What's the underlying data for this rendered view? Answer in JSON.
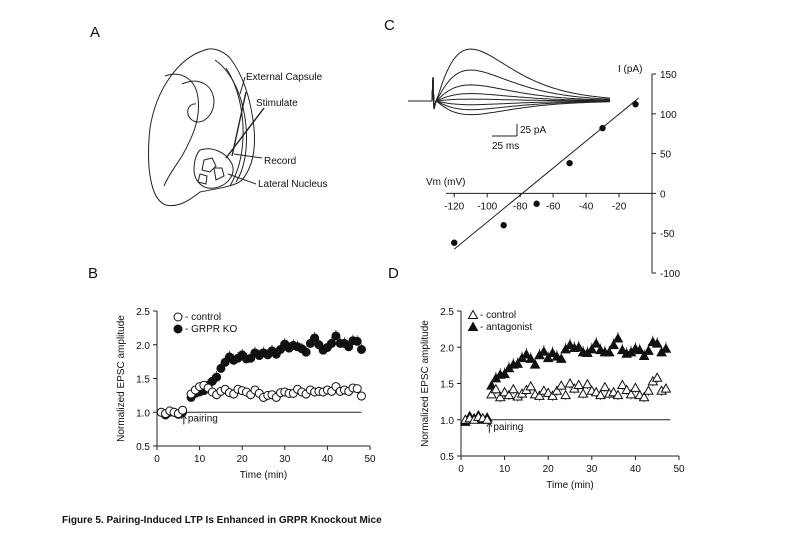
{
  "caption": "Figure 5.  Pairing-Induced LTP Is Enhanced in GRPR Knockout Mice",
  "panel_labels": [
    "A",
    "B",
    "C",
    "D"
  ],
  "panel_a": {
    "labels": [
      "External Capsule",
      "Stimulate",
      "Record",
      "Lateral Nucleus"
    ]
  },
  "panel_c": {
    "scale_current": "25 pA",
    "scale_time": "25 ms"
  },
  "chart_data": [
    {
      "panel": "C",
      "type": "scatter",
      "title": "",
      "xlabel": "Vm (mV)",
      "ylabel": "I (pA)",
      "xlim": [
        -125,
        0
      ],
      "ylim": [
        -100,
        150
      ],
      "xticks": [
        -120,
        -100,
        -80,
        -60,
        -40,
        -20
      ],
      "yticks": [
        150,
        100,
        50,
        0,
        -50,
        -100
      ],
      "x": [
        -120,
        -90,
        -70,
        -50,
        -30,
        -10
      ],
      "y": [
        -62,
        -40,
        -13,
        38,
        82,
        112
      ],
      "fit_line": {
        "x": [
          -120,
          -8
        ],
        "y": [
          -70,
          120
        ]
      }
    },
    {
      "panel": "B",
      "type": "scatter",
      "xlabel": "Time (min)",
      "ylabel": "Normalized EPSC amplitude",
      "xlim": [
        0,
        50
      ],
      "ylim": [
        0.5,
        2.5
      ],
      "xticks": [
        0,
        10,
        20,
        30,
        40,
        50
      ],
      "yticks": [
        "0.5",
        "1.0",
        "1.5",
        "2.0",
        "2.5"
      ],
      "annotation": "pairing",
      "annotation_x": 6.3,
      "baseline": 1.0,
      "series": [
        {
          "name": "control",
          "marker": "open-circle",
          "x": [
            1,
            2,
            3,
            4,
            5,
            6,
            8,
            9,
            10,
            11,
            12,
            13,
            14,
            15,
            16,
            17,
            18,
            19,
            20,
            21,
            22,
            23,
            24,
            25,
            26,
            27,
            28,
            29,
            30,
            31,
            32,
            33,
            34,
            35,
            36,
            37,
            38,
            39,
            40,
            41,
            42,
            43,
            44,
            45,
            46,
            47,
            48
          ],
          "y": [
            1.0,
            0.98,
            1.02,
            1.0,
            0.98,
            1.03,
            1.27,
            1.33,
            1.38,
            1.4,
            1.36,
            1.3,
            1.26,
            1.31,
            1.34,
            1.29,
            1.27,
            1.34,
            1.32,
            1.3,
            1.26,
            1.33,
            1.28,
            1.22,
            1.25,
            1.26,
            1.22,
            1.29,
            1.3,
            1.28,
            1.28,
            1.34,
            1.3,
            1.27,
            1.33,
            1.3,
            1.31,
            1.3,
            1.33,
            1.31,
            1.38,
            1.31,
            1.33,
            1.31,
            1.36,
            1.35,
            1.24
          ]
        },
        {
          "name": "GRPR KO",
          "marker": "filled-circle",
          "x": [
            1,
            2,
            3,
            4,
            5,
            6,
            8,
            9,
            10,
            11,
            12,
            13,
            14,
            15,
            16,
            17,
            18,
            19,
            20,
            21,
            22,
            23,
            24,
            25,
            26,
            27,
            28,
            29,
            30,
            31,
            32,
            33,
            34,
            35,
            36,
            37,
            38,
            39,
            40,
            41,
            42,
            43,
            44,
            45,
            46,
            47,
            48
          ],
          "y": [
            1.0,
            0.96,
            1.0,
            1.0,
            0.97,
            1.0,
            1.22,
            1.28,
            1.3,
            1.32,
            1.4,
            1.46,
            1.52,
            1.65,
            1.74,
            1.82,
            1.77,
            1.8,
            1.85,
            1.79,
            1.8,
            1.88,
            1.84,
            1.88,
            1.85,
            1.91,
            1.86,
            1.93,
            2.01,
            1.95,
            1.99,
            1.97,
            1.94,
            1.89,
            2.02,
            2.1,
            2.0,
            1.92,
            1.96,
            2.02,
            2.13,
            2.02,
            2.02,
            1.97,
            2.06,
            2.05,
            1.93
          ]
        }
      ]
    },
    {
      "panel": "D",
      "type": "scatter",
      "xlabel": "Time (min)",
      "ylabel": "Normalized EPSC amplitude",
      "xlim": [
        0,
        50
      ],
      "ylim": [
        0.5,
        2.5
      ],
      "xticks": [
        0,
        10,
        20,
        30,
        40,
        50
      ],
      "yticks": [
        "0.5",
        "1.0",
        "1.5",
        "2.0",
        "2.5"
      ],
      "annotation": "pairing",
      "annotation_x": 6.5,
      "baseline": 1.0,
      "series": [
        {
          "name": "control",
          "marker": "open-triangle",
          "x": [
            1,
            2,
            3,
            4,
            5,
            6,
            7,
            8,
            9,
            10,
            11,
            12,
            13,
            14,
            15,
            16,
            17,
            18,
            19,
            20,
            21,
            22,
            23,
            24,
            25,
            26,
            27,
            28,
            29,
            30,
            31,
            32,
            33,
            34,
            35,
            36,
            37,
            38,
            39,
            40,
            41,
            42,
            43,
            44,
            45,
            46,
            47
          ],
          "y": [
            1.0,
            1.02,
            1.0,
            1.04,
            1.02,
            1.0,
            1.35,
            1.42,
            1.31,
            1.38,
            1.34,
            1.42,
            1.32,
            1.36,
            1.41,
            1.46,
            1.35,
            1.33,
            1.4,
            1.37,
            1.33,
            1.4,
            1.47,
            1.34,
            1.5,
            1.43,
            1.48,
            1.36,
            1.49,
            1.4,
            1.38,
            1.34,
            1.45,
            1.36,
            1.38,
            1.34,
            1.48,
            1.41,
            1.35,
            1.44,
            1.34,
            1.31,
            1.4,
            1.53,
            1.58,
            1.4,
            1.43
          ]
        },
        {
          "name": "antagonist",
          "marker": "filled-triangle",
          "x": [
            1,
            2,
            3,
            4,
            5,
            6,
            7,
            8,
            9,
            10,
            11,
            12,
            13,
            14,
            15,
            16,
            17,
            18,
            19,
            20,
            21,
            22,
            23,
            24,
            25,
            26,
            27,
            28,
            29,
            30,
            31,
            32,
            33,
            34,
            35,
            36,
            37,
            38,
            39,
            40,
            41,
            42,
            43,
            44,
            45,
            46,
            47
          ],
          "y": [
            0.97,
            1.05,
            1.02,
            1.06,
            1.0,
            1.03,
            1.47,
            1.57,
            1.62,
            1.63,
            1.71,
            1.76,
            1.77,
            1.85,
            1.9,
            1.84,
            1.76,
            1.89,
            1.94,
            1.85,
            1.92,
            1.87,
            1.84,
            1.97,
            2.03,
            1.99,
            2.0,
            1.93,
            1.92,
            1.97,
            2.05,
            1.96,
            1.93,
            1.93,
            2.03,
            2.12,
            1.96,
            1.91,
            1.93,
            1.98,
            1.96,
            1.88,
            1.95,
            2.07,
            2.05,
            1.93,
            1.98
          ]
        }
      ]
    }
  ]
}
